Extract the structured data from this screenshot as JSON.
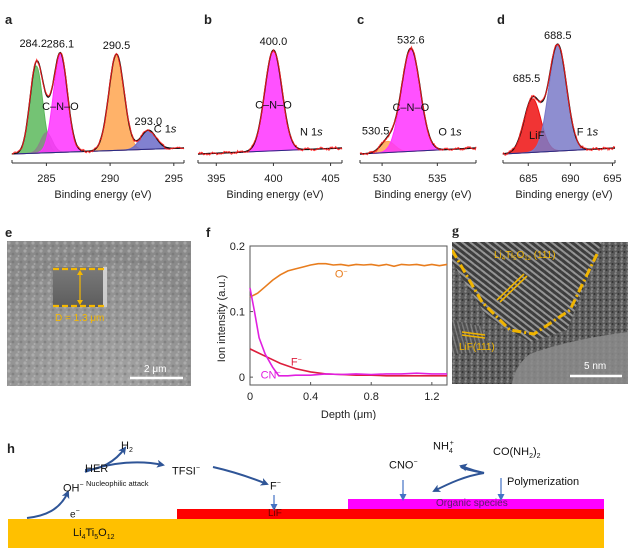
{
  "panels": {
    "a": {
      "letter": "a"
    },
    "b": {
      "letter": "b"
    },
    "c": {
      "letter": "c"
    },
    "d": {
      "letter": "d"
    },
    "e": {
      "letter": "e",
      "depth_label": "D = 1.3 μm",
      "scale_label": "2 μm"
    },
    "f": {
      "letter": "f"
    },
    "g": {
      "letter": "g",
      "lto_label_main": "Li",
      "lto_sub1": "4",
      "lto_mid": "Ti",
      "lto_sub2": "5",
      "lto_mid2": "O",
      "lto_sub3": "12",
      "lto_suffix": " (111)",
      "lif_label": "LiF(111)",
      "scale_label": "5 nm"
    },
    "h": {
      "letter": "h",
      "h2": "H",
      "h2_sub": "2",
      "her": "HER",
      "oh": "OH",
      "oh_sup": "−",
      "nucleophilic": "Nucleophilic attack",
      "tfsi": "TFSI",
      "tfsi_sup": "−",
      "f_ion": "F",
      "f_sup": "−",
      "electron": "e",
      "electron_sup": "−",
      "cno": "CNO",
      "cno_sup": "−",
      "nh4": "NH",
      "nh4_sub": "4",
      "nh4_sup": "+",
      "urea_a": "CO(NH",
      "urea_sub": "2",
      "urea_b": ")",
      "urea_sub2": "2",
      "polymerization": "Polymerization",
      "layer_organic": "Organic species",
      "layer_lif": "LiF",
      "layer_lto_a": "Li",
      "layer_lto_s1": "4",
      "layer_lto_b": "Ti",
      "layer_lto_s2": "5",
      "layer_lto_c": "O",
      "layer_lto_s3": "12",
      "colors": {
        "lto": "#FFC000",
        "lif": "#FF0000",
        "organic": "#FF00FF",
        "arrow": "#2F5597",
        "arrow_light": "#4472C4"
      }
    }
  },
  "chart_data": [
    {
      "id": "a",
      "type": "area",
      "title": "",
      "xlabel": "Binding energy (eV)",
      "ylabel": "",
      "xlim": [
        282.3,
        295.8
      ],
      "xticks": [
        285,
        290,
        295
      ],
      "spectrum_label": "C 1s",
      "annotation": "C–N–O",
      "peaks": [
        {
          "center": 284.2,
          "label": "284.2",
          "amp": 0.78,
          "width": 0.5,
          "color": "#5cb85c"
        },
        {
          "center": 285.0,
          "label": "",
          "amp": 0.18,
          "width": 0.45,
          "color": "#888888"
        },
        {
          "center": 286.1,
          "label": "286.1",
          "amp": 0.88,
          "width": 0.55,
          "color": "#ff33ff"
        },
        {
          "center": 290.5,
          "label": "290.5",
          "amp": 0.86,
          "width": 0.6,
          "color": "#ffa54f"
        },
        {
          "center": 293.0,
          "label": "293.0",
          "amp": 0.17,
          "width": 0.6,
          "color": "#6b6bc8"
        }
      ]
    },
    {
      "id": "b",
      "type": "area",
      "xlabel": "Binding energy (eV)",
      "xlim": [
        393.4,
        406.0
      ],
      "xticks": [
        395,
        400,
        405
      ],
      "spectrum_label": "N 1s",
      "annotation": "C–N–O",
      "peaks": [
        {
          "center": 400.0,
          "label": "400.0",
          "amp": 0.9,
          "width": 0.75,
          "color": "#ff33ff"
        }
      ]
    },
    {
      "id": "c",
      "type": "area",
      "xlabel": "Binding energy (eV)",
      "xlim": [
        528.0,
        538.5
      ],
      "xticks": [
        530,
        535
      ],
      "spectrum_label": "O 1s",
      "annotation": "C–N–O",
      "peaks": [
        {
          "center": 530.5,
          "label": "530.5",
          "amp": 0.1,
          "width": 0.65,
          "color": "#ffa54f"
        },
        {
          "center": 532.6,
          "label": "532.6",
          "amp": 0.92,
          "width": 0.85,
          "color": "#ff33ff"
        }
      ]
    },
    {
      "id": "d",
      "type": "area",
      "xlabel": "Binding energy (eV)",
      "xlim": [
        682.0,
        695.3
      ],
      "xticks": [
        685,
        690,
        695
      ],
      "spectrum_label": "F 1s",
      "annotation": "LiF",
      "peaks": [
        {
          "center": 685.5,
          "label": "685.5",
          "amp": 0.48,
          "width": 1.0,
          "color": "#ee1111"
        },
        {
          "center": 688.5,
          "label": "688.5",
          "amp": 0.95,
          "width": 1.05,
          "color": "#7a7ac8"
        }
      ]
    },
    {
      "id": "f",
      "type": "line",
      "xlabel": "Depth (μm)",
      "ylabel": "Ion intensity (a.u.)",
      "xlim": [
        0,
        1.3
      ],
      "ylim": [
        -0.012,
        0.2
      ],
      "xticks": [
        0,
        0.4,
        0.8,
        1.2
      ],
      "yticks": [
        0,
        0.1,
        0.2
      ],
      "series": [
        {
          "name": "O−",
          "color": "#e87d1e",
          "x": [
            0,
            0.05,
            0.1,
            0.15,
            0.2,
            0.25,
            0.3,
            0.35,
            0.4,
            0.45,
            0.5,
            0.55,
            0.6,
            0.65,
            0.7,
            0.75,
            0.8,
            0.85,
            0.9,
            0.95,
            1.0,
            1.05,
            1.1,
            1.15,
            1.2,
            1.25,
            1.3
          ],
          "y": [
            0.122,
            0.128,
            0.138,
            0.148,
            0.156,
            0.162,
            0.165,
            0.168,
            0.171,
            0.173,
            0.173,
            0.171,
            0.172,
            0.17,
            0.172,
            0.171,
            0.172,
            0.17,
            0.172,
            0.169,
            0.172,
            0.171,
            0.172,
            0.17,
            0.172,
            0.17,
            0.172
          ]
        },
        {
          "name": "F−",
          "color": "#dd1e3c",
          "x": [
            0,
            0.1,
            0.2,
            0.3,
            0.4,
            0.5,
            0.6,
            0.7,
            0.8,
            0.9,
            1.0,
            1.1,
            1.2,
            1.3
          ],
          "y": [
            0.043,
            0.032,
            0.021,
            0.013,
            0.008,
            0.005,
            0.004,
            0.003,
            0.003,
            0.002,
            0.002,
            0.002,
            0.002,
            0.002
          ]
        },
        {
          "name": "CN−",
          "color": "#e020e0",
          "x": [
            0,
            0.03,
            0.06,
            0.1,
            0.15,
            0.19,
            0.25,
            0.3,
            0.4,
            0.5,
            0.6,
            0.7,
            0.8,
            0.9,
            1.0,
            1.1,
            1.2,
            1.3
          ],
          "y": [
            0.136,
            0.1,
            0.06,
            0.035,
            0.015,
            0.002,
            0.002,
            0.003,
            0.003,
            0.005,
            0.004,
            0.005,
            0.004,
            0.005,
            0.005,
            0.006,
            0.005,
            0.005
          ]
        }
      ],
      "series_labels": [
        {
          "name": "O−",
          "text": "O",
          "sup": "−"
        },
        {
          "name": "F−",
          "text": "F",
          "sup": "−"
        },
        {
          "name": "CN−",
          "text": "CN",
          "sup": "−"
        }
      ]
    }
  ]
}
